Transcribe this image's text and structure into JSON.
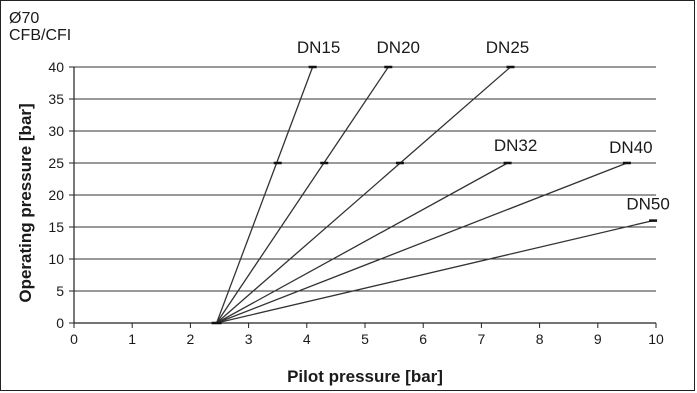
{
  "header": {
    "line1": "Ø70",
    "line2": "CFB/CFI"
  },
  "chart_data": {
    "type": "line",
    "xlabel": "Pilot pressure [bar]",
    "ylabel": "Operating pressure [bar]",
    "xlim": [
      0,
      10
    ],
    "ylim": [
      0,
      40
    ],
    "xticks": [
      0,
      1,
      2,
      3,
      4,
      5,
      6,
      7,
      8,
      9,
      10
    ],
    "yticks": [
      0,
      5,
      10,
      15,
      20,
      25,
      30,
      35,
      40
    ],
    "grid": "horizontal",
    "series": [
      {
        "name": "DN15",
        "points": [
          [
            2.45,
            0
          ],
          [
            4.1,
            40
          ]
        ],
        "markers": [
          [
            3.5,
            25
          ],
          [
            4.1,
            40
          ]
        ]
      },
      {
        "name": "DN20",
        "points": [
          [
            2.45,
            0
          ],
          [
            5.4,
            40
          ]
        ],
        "markers": [
          [
            4.3,
            25
          ],
          [
            5.4,
            40
          ]
        ]
      },
      {
        "name": "DN25",
        "points": [
          [
            2.45,
            0
          ],
          [
            7.5,
            40
          ]
        ],
        "markers": [
          [
            5.6,
            25
          ],
          [
            7.5,
            40
          ]
        ]
      },
      {
        "name": "DN32",
        "points": [
          [
            2.45,
            0
          ],
          [
            7.45,
            25
          ]
        ],
        "markers": [
          [
            7.45,
            25
          ]
        ]
      },
      {
        "name": "DN40",
        "points": [
          [
            2.45,
            0
          ],
          [
            9.5,
            25
          ]
        ],
        "markers": [
          [
            9.5,
            25
          ]
        ]
      },
      {
        "name": "DN50",
        "points": [
          [
            2.45,
            0
          ],
          [
            9.95,
            16
          ]
        ],
        "markers": [
          [
            9.95,
            16
          ]
        ]
      }
    ]
  }
}
